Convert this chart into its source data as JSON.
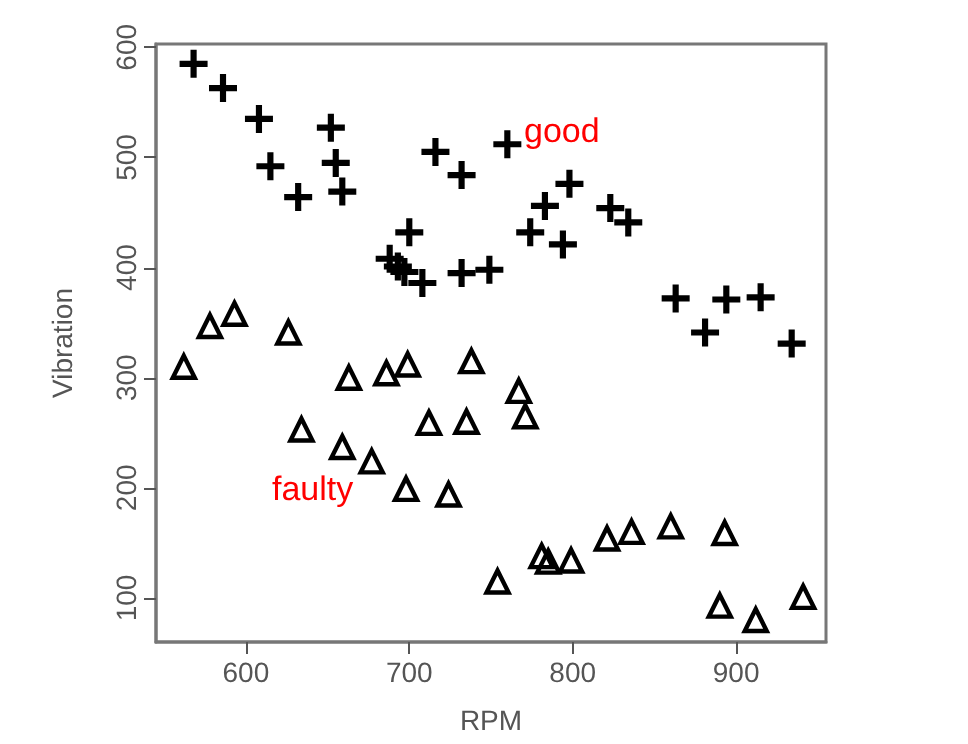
{
  "chart_data": {
    "type": "scatter",
    "xlabel": "RPM",
    "ylabel": "Vibration",
    "xlim": [
      545,
      955
    ],
    "xticks": [
      600,
      700,
      800,
      900
    ],
    "ylim": [
      60,
      603
    ],
    "yticks": [
      100,
      200,
      300,
      400,
      500,
      600
    ],
    "grid": false,
    "series": [
      {
        "color": "#000000",
        "marker": "cross",
        "x": [
          568,
          586,
          608,
          615,
          632,
          652,
          655,
          659,
          688,
          693,
          700,
          697,
          708,
          716,
          732,
          732,
          749,
          760,
          774,
          783,
          794,
          798,
          823,
          834,
          863,
          881,
          894,
          915,
          934
        ],
        "values": [
          585,
          563,
          535,
          492,
          464,
          527,
          495,
          469,
          408,
          401,
          432,
          396,
          386,
          505,
          484,
          395,
          398,
          512,
          432,
          456,
          421,
          476,
          454,
          441,
          372,
          341,
          371,
          373,
          331
        ]
      },
      {
        "color": "#000000",
        "marker": "triangle",
        "x": [
          562,
          578,
          593,
          626,
          634,
          659,
          663,
          677,
          686,
          698,
          699,
          712,
          724,
          735,
          738,
          754,
          767,
          771,
          781,
          785,
          799,
          821,
          836,
          860,
          890,
          893,
          912,
          941
        ],
        "values": [
          310,
          347,
          358,
          341,
          253,
          237,
          300,
          224,
          304,
          199,
          312,
          259,
          194,
          260,
          315,
          115,
          288,
          265,
          138,
          133,
          134,
          154,
          160,
          165,
          93,
          159,
          80,
          101
        ]
      }
    ],
    "annotations": [
      "good",
      "faulty"
    ]
  }
}
